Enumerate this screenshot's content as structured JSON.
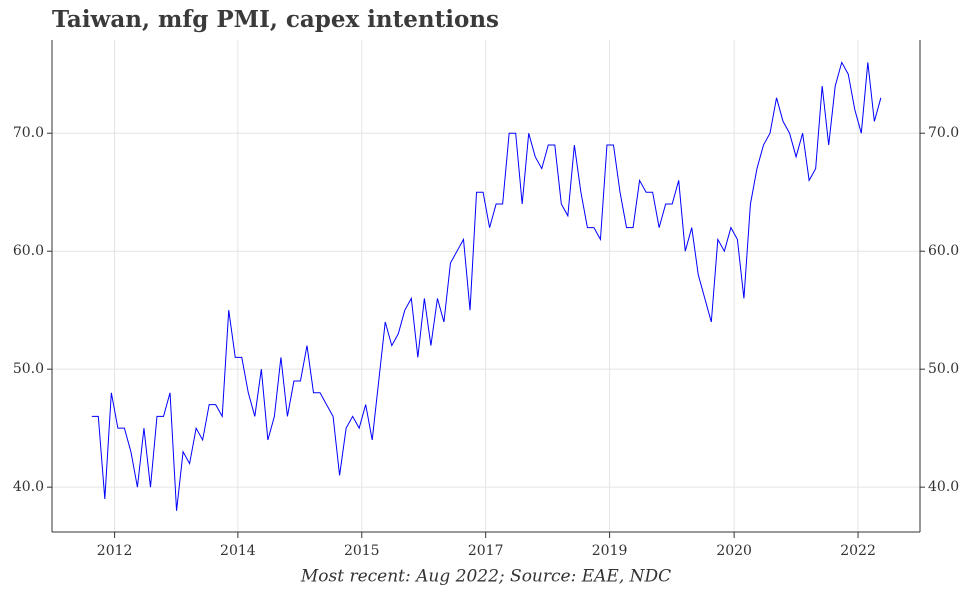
{
  "chart_data": {
    "type": "line",
    "title": "Taiwan, mfg PMI, capex intentions",
    "caption": "Most recent: Aug 2022; Source: EAE, NDC",
    "series": [
      {
        "color": "#0000ff",
        "values": [
          46,
          46,
          39,
          48,
          45,
          45,
          43,
          40,
          45,
          40,
          46,
          46,
          48,
          38,
          43,
          42,
          45,
          44,
          47,
          47,
          46,
          55,
          51,
          51,
          48,
          46,
          50,
          44,
          46,
          51,
          46,
          49,
          49,
          52,
          48,
          48,
          47,
          46,
          41,
          45,
          46,
          45,
          47,
          44,
          49,
          54,
          52,
          53,
          55,
          56,
          51,
          56,
          52,
          56,
          54,
          59,
          60,
          61,
          55,
          65,
          65,
          62,
          64,
          64,
          70,
          70,
          64,
          70,
          68,
          67,
          69,
          69,
          64,
          63,
          69,
          65,
          62,
          62,
          61,
          69,
          69,
          65,
          62,
          62,
          66,
          65,
          65,
          62,
          64,
          64,
          66,
          60,
          62,
          58,
          56,
          54,
          61,
          60,
          62,
          61,
          56,
          64,
          67,
          69,
          70,
          73,
          71,
          70,
          68,
          70,
          66,
          67,
          74,
          69,
          74,
          76,
          75,
          72,
          70,
          76,
          71,
          73
        ]
      }
    ],
    "xlim": [
      -6.1,
      127
    ],
    "xticks": [
      {
        "value": 3.5,
        "label": "2012"
      },
      {
        "value": 22.4,
        "label": "2014"
      },
      {
        "value": 41.4,
        "label": "2015"
      },
      {
        "value": 60.4,
        "label": "2017"
      },
      {
        "value": 79.4,
        "label": "2019"
      },
      {
        "value": 98.5,
        "label": "2020"
      },
      {
        "value": 117.5,
        "label": "2022"
      }
    ],
    "ylim": [
      36.2,
      77.9
    ],
    "yticks": [
      {
        "value": 40,
        "label": "40.0"
      },
      {
        "value": 50,
        "label": "50.0"
      },
      {
        "value": 60,
        "label": "60.0"
      },
      {
        "value": 70,
        "label": "70.0"
      }
    ],
    "grid": true
  }
}
